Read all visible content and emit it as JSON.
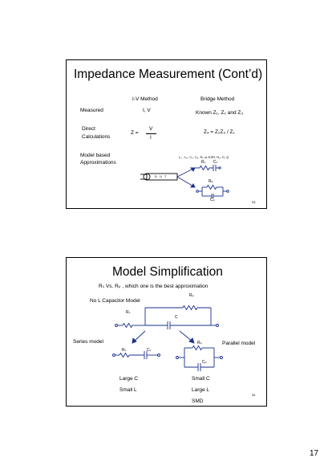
{
  "slide1": {
    "title": "Impedance Measurement (Cont’d)",
    "col_iv": "I-V Method",
    "col_bridge": "Bridge Method",
    "row_measured": "Measured",
    "iv_measured": "I, V",
    "bridge_measured": "Known Z₁, Z₂ and Z₃",
    "row_direct_1": "Direct",
    "row_direct_2": "Calculations",
    "z_eq": "Z =",
    "frac_num": "V",
    "frac_den": "I",
    "bridge_calc": "Z₄ = Z₂Z₃ / Z₁",
    "row_model_1": "Model based",
    "row_model_2": "Approximations",
    "model_params": "Lₛ , Lₚ, Cₛ, Cₚ, Rₛ or ESR, Rₚ, D, Q",
    "dut_label": "D U T",
    "rs_label": "Rₛ",
    "cs_label": "Cₛ",
    "rp_label": "Rₚ",
    "cp_label": "Cₚ",
    "page_number": "33"
  },
  "slide2": {
    "title": "Model Simplification",
    "question": "Rₛ Vs. Rₚ , which one is the best approximation",
    "no_l_model": "No L Capacitor Model",
    "rp_top": "Rₚ",
    "rs_top": "Rₛ",
    "c_label": "C",
    "series_model": "Series model",
    "parallel_model": "Parallel model",
    "rs_series": "Rₛ",
    "cs_series": "Cₛ",
    "rp_parallel": "Rₚ",
    "cp_parallel": "Cₚ",
    "large_c": "Large C",
    "small_l": "Small L",
    "small_c": "Small C",
    "large_l": "Large L",
    "smd": "SMD",
    "page_number": "34"
  },
  "document_page_number": "17",
  "colors": {
    "wire": "#1a2f8c",
    "text": "#000000"
  }
}
